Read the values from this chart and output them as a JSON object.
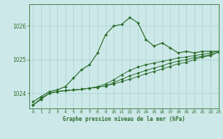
{
  "title": "Graphe pression niveau de la mer (hPa)",
  "background_color": "#cce8e8",
  "grid_color": "#aad0d0",
  "line_color": "#2d6e2d",
  "ylim": [
    1023.55,
    1026.65
  ],
  "xlim": [
    -0.5,
    23
  ],
  "yticks": [
    1024,
    1025,
    1026
  ],
  "xticks": [
    0,
    1,
    2,
    3,
    4,
    5,
    6,
    7,
    8,
    9,
    10,
    11,
    12,
    13,
    14,
    15,
    16,
    17,
    18,
    19,
    20,
    21,
    22,
    23
  ],
  "series1_x": [
    0,
    1,
    2,
    3,
    4,
    5,
    6,
    7,
    8,
    9,
    10,
    11,
    12,
    13,
    14,
    15,
    16,
    17,
    18,
    19,
    20,
    21,
    22,
    23
  ],
  "series1_y": [
    1023.75,
    1023.9,
    1024.05,
    1024.1,
    1024.2,
    1024.45,
    1024.7,
    1024.85,
    1025.2,
    1025.75,
    1026.0,
    1026.05,
    1026.25,
    1026.1,
    1025.6,
    1025.4,
    1025.5,
    1025.35,
    1025.2,
    1025.25,
    1025.2,
    1025.25,
    1025.25,
    1025.25
  ],
  "series2_x": [
    0,
    1,
    2,
    3,
    4,
    5,
    6,
    7,
    8,
    9,
    10,
    11,
    12,
    13,
    14,
    15,
    16,
    17,
    18,
    19,
    20,
    21,
    22,
    23
  ],
  "series2_y": [
    1023.65,
    1023.85,
    1024.0,
    1024.05,
    1024.08,
    1024.1,
    1024.12,
    1024.15,
    1024.18,
    1024.22,
    1024.28,
    1024.35,
    1024.42,
    1024.5,
    1024.58,
    1024.65,
    1024.72,
    1024.8,
    1024.88,
    1024.92,
    1025.0,
    1025.08,
    1025.12,
    1025.22
  ],
  "series3_x": [
    0,
    1,
    2,
    3,
    4,
    5,
    6,
    7,
    8,
    9,
    10,
    11,
    12,
    13,
    14,
    15,
    16,
    17,
    18,
    19,
    20,
    21,
    22,
    23
  ],
  "series3_y": [
    1023.65,
    1023.82,
    1024.0,
    1024.05,
    1024.08,
    1024.1,
    1024.12,
    1024.15,
    1024.18,
    1024.22,
    1024.32,
    1024.42,
    1024.52,
    1024.6,
    1024.68,
    1024.75,
    1024.82,
    1024.9,
    1024.95,
    1025.0,
    1025.06,
    1025.1,
    1025.15,
    1025.22
  ],
  "series4_x": [
    0,
    1,
    2,
    3,
    4,
    5,
    6,
    7,
    8,
    9,
    10,
    11,
    12,
    13,
    14,
    15,
    16,
    17,
    18,
    19,
    20,
    21,
    22,
    23
  ],
  "series4_y": [
    1023.65,
    1023.82,
    1024.0,
    1024.05,
    1024.08,
    1024.1,
    1024.12,
    1024.15,
    1024.2,
    1024.28,
    1024.4,
    1024.55,
    1024.68,
    1024.78,
    1024.85,
    1024.9,
    1024.95,
    1025.0,
    1025.05,
    1025.08,
    1025.12,
    1025.16,
    1025.2,
    1025.25
  ]
}
